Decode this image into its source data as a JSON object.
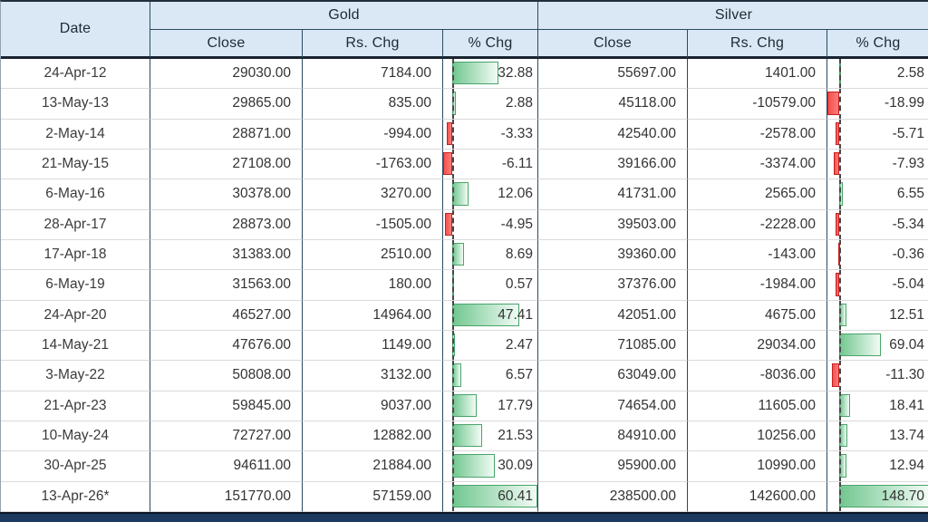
{
  "table": {
    "date_header": "Date",
    "gold_header": "Gold",
    "silver_header": "Silver",
    "sub_headers": {
      "close": "Close",
      "rs_chg": "Rs. Chg",
      "pct_chg": "% Chg"
    }
  },
  "bar_scales": {
    "gold": {
      "min": -6.11,
      "max": 60.41
    },
    "silver": {
      "min": -18.99,
      "max": 148.7
    }
  },
  "colors": {
    "header_bg": "#d9e8f4",
    "grid_line": "#2b4a61",
    "positive_bar": "#72c790",
    "positive_bar_border": "#4aa46b",
    "negative_bar": "#f5504f",
    "negative_bar_border": "#c52222",
    "bottom_bar": "#1b3a5e"
  },
  "rows": [
    {
      "date": "24-Apr-12",
      "gold": {
        "close": 29030.0,
        "rs_chg": 7184.0,
        "pct_chg": 32.88
      },
      "silver": {
        "close": 55697.0,
        "rs_chg": 1401.0,
        "pct_chg": 2.58
      }
    },
    {
      "date": "13-May-13",
      "gold": {
        "close": 29865.0,
        "rs_chg": 835.0,
        "pct_chg": 2.88
      },
      "silver": {
        "close": 45118.0,
        "rs_chg": -10579.0,
        "pct_chg": -18.99
      }
    },
    {
      "date": "2-May-14",
      "gold": {
        "close": 28871.0,
        "rs_chg": -994.0,
        "pct_chg": -3.33
      },
      "silver": {
        "close": 42540.0,
        "rs_chg": -2578.0,
        "pct_chg": -5.71
      }
    },
    {
      "date": "21-May-15",
      "gold": {
        "close": 27108.0,
        "rs_chg": -1763.0,
        "pct_chg": -6.11
      },
      "silver": {
        "close": 39166.0,
        "rs_chg": -3374.0,
        "pct_chg": -7.93
      }
    },
    {
      "date": "6-May-16",
      "gold": {
        "close": 30378.0,
        "rs_chg": 3270.0,
        "pct_chg": 12.06
      },
      "silver": {
        "close": 41731.0,
        "rs_chg": 2565.0,
        "pct_chg": 6.55
      }
    },
    {
      "date": "28-Apr-17",
      "gold": {
        "close": 28873.0,
        "rs_chg": -1505.0,
        "pct_chg": -4.95
      },
      "silver": {
        "close": 39503.0,
        "rs_chg": -2228.0,
        "pct_chg": -5.34
      }
    },
    {
      "date": "17-Apr-18",
      "gold": {
        "close": 31383.0,
        "rs_chg": 2510.0,
        "pct_chg": 8.69
      },
      "silver": {
        "close": 39360.0,
        "rs_chg": -143.0,
        "pct_chg": -0.36
      }
    },
    {
      "date": "6-May-19",
      "gold": {
        "close": 31563.0,
        "rs_chg": 180.0,
        "pct_chg": 0.57
      },
      "silver": {
        "close": 37376.0,
        "rs_chg": -1984.0,
        "pct_chg": -5.04
      }
    },
    {
      "date": "24-Apr-20",
      "gold": {
        "close": 46527.0,
        "rs_chg": 14964.0,
        "pct_chg": 47.41
      },
      "silver": {
        "close": 42051.0,
        "rs_chg": 4675.0,
        "pct_chg": 12.51
      }
    },
    {
      "date": "14-May-21",
      "gold": {
        "close": 47676.0,
        "rs_chg": 1149.0,
        "pct_chg": 2.47
      },
      "silver": {
        "close": 71085.0,
        "rs_chg": 29034.0,
        "pct_chg": 69.04
      }
    },
    {
      "date": "3-May-22",
      "gold": {
        "close": 50808.0,
        "rs_chg": 3132.0,
        "pct_chg": 6.57
      },
      "silver": {
        "close": 63049.0,
        "rs_chg": -8036.0,
        "pct_chg": -11.3
      }
    },
    {
      "date": "21-Apr-23",
      "gold": {
        "close": 59845.0,
        "rs_chg": 9037.0,
        "pct_chg": 17.79
      },
      "silver": {
        "close": 74654.0,
        "rs_chg": 11605.0,
        "pct_chg": 18.41
      }
    },
    {
      "date": "10-May-24",
      "gold": {
        "close": 72727.0,
        "rs_chg": 12882.0,
        "pct_chg": 21.53
      },
      "silver": {
        "close": 84910.0,
        "rs_chg": 10256.0,
        "pct_chg": 13.74
      }
    },
    {
      "date": "30-Apr-25",
      "gold": {
        "close": 94611.0,
        "rs_chg": 21884.0,
        "pct_chg": 30.09
      },
      "silver": {
        "close": 95900.0,
        "rs_chg": 10990.0,
        "pct_chg": 12.94
      }
    },
    {
      "date": "13-Apr-26*",
      "gold": {
        "close": 151770.0,
        "rs_chg": 57159.0,
        "pct_chg": 60.41
      },
      "silver": {
        "close": 238500.0,
        "rs_chg": 142600.0,
        "pct_chg": 148.7
      }
    }
  ]
}
